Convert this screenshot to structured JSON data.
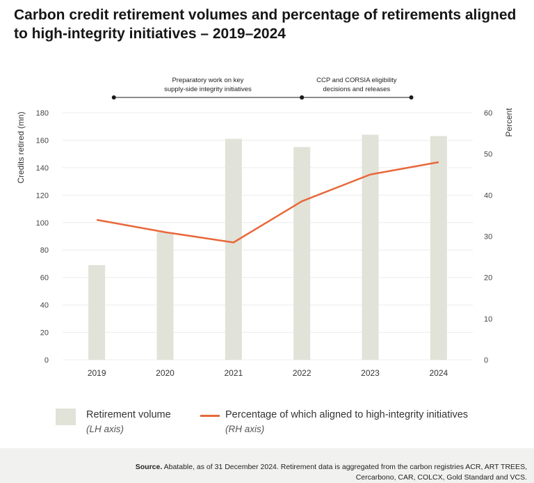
{
  "title": "Carbon credit retirement volumes and percentage of retirements aligned to high-integrity initiatives – 2019–2024",
  "chart_data": {
    "type": "bar",
    "title": "Carbon credit retirement volumes and percentage of retirements aligned to high-integrity initiatives – 2019–2024",
    "categories": [
      "2019",
      "2020",
      "2021",
      "2022",
      "2023",
      "2024"
    ],
    "series": [
      {
        "name": "Retirement volume",
        "name_note": "(LH axis)",
        "type": "bar",
        "axis": "left",
        "color": "#e1e2d8",
        "values": [
          69,
          93,
          161,
          155,
          164,
          163
        ]
      },
      {
        "name": "Percentage of which aligned to high-integrity initiatives",
        "name_note": "(RH axis)",
        "type": "line",
        "axis": "right",
        "color": "#e8683a",
        "values": [
          34,
          31,
          28.5,
          38.5,
          45,
          48
        ]
      }
    ],
    "ylabel": "Credits retired (mn)",
    "ylim": [
      0,
      180
    ],
    "yticks": [
      0,
      20,
      40,
      60,
      80,
      100,
      120,
      140,
      160,
      180
    ],
    "y2label": "Percent",
    "y2lim": [
      0,
      60
    ],
    "y2ticks": [
      0,
      10,
      20,
      30,
      40,
      50,
      60
    ],
    "grid": true,
    "legend_position": "bottom",
    "annotations": [
      {
        "text": [
          "Preparatory work on key",
          "supply-side integrity initiatives"
        ],
        "from": 0.75,
        "to": 3.5
      },
      {
        "text": [
          "CCP and CORSIA eligibility",
          "decisions and releases"
        ],
        "from": 3.5,
        "to": 5.1
      }
    ]
  },
  "legend": {
    "bar_label": "Retirement volume",
    "bar_sub": "(LH axis)",
    "line_label": "Percentage of which aligned to high-integrity initiatives",
    "line_sub": "(RH axis)"
  },
  "source": {
    "label": "Source.",
    "text": "Abatable, as of 31 December 2024. Retirement data is aggregated from the carbon registries ACR, ART TREES, Cercarbono, CAR, COLCX, Gold Standard and VCS."
  }
}
